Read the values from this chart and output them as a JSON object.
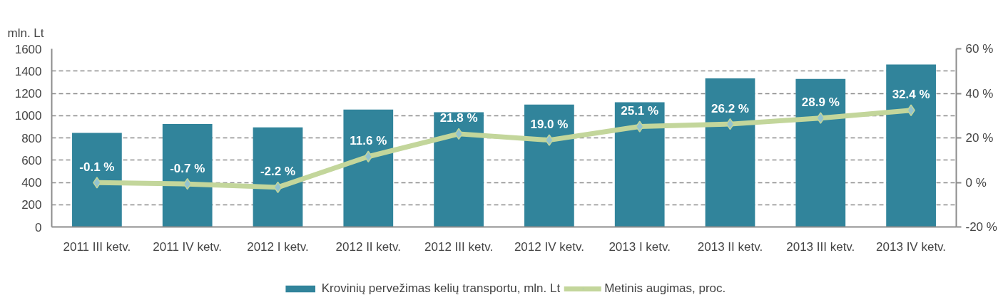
{
  "chart_data": {
    "type": "bar",
    "ylabel": "mln. Lt",
    "categories": [
      "2011 III ketv.",
      "2011 IV ketv.",
      "2012 I ketv.",
      "2012 II ketv.",
      "2012 III ketv.",
      "2012 IV ketv.",
      "2013 I ketv.",
      "2013 II ketv.",
      "2013 III ketv.",
      "2013 IV ketv."
    ],
    "series": [
      {
        "name": "Krovinių pervežimas kelių transportu, mln. Lt",
        "color": "#31849b",
        "values": [
          845,
          925,
          895,
          1055,
          1030,
          1100,
          1120,
          1335,
          1330,
          1460
        ]
      },
      {
        "name": "Metinis augimas, proc.",
        "type": "line",
        "axis": "y2",
        "color": "#c3d69b",
        "values": [
          -0.1,
          -0.7,
          -2.2,
          11.6,
          21.8,
          19.0,
          25.1,
          26.2,
          28.9,
          32.4
        ],
        "value_labels": [
          "-0.1 %",
          "-0.7 %",
          "-2.2 %",
          "11.6 %",
          "21.8 %",
          "19.0 %",
          "25.1 %",
          "26.2 %",
          "28.9 %",
          "32.4 %"
        ]
      }
    ],
    "ylim": [
      0,
      1600
    ],
    "yticks": [
      0,
      200,
      400,
      600,
      800,
      1000,
      1200,
      1400,
      1600
    ],
    "y2lim": [
      -20,
      60
    ],
    "y2ticks": [
      {
        "value": -20,
        "label": "-20 %"
      },
      {
        "value": 0,
        "label": "0 %"
      },
      {
        "value": 20,
        "label": "20 %"
      },
      {
        "value": 40,
        "label": "40 %"
      },
      {
        "value": 60,
        "label": "60 %"
      }
    ],
    "grid": "y",
    "legend": "bottom",
    "marker": "diamond",
    "line_style": "solid"
  }
}
